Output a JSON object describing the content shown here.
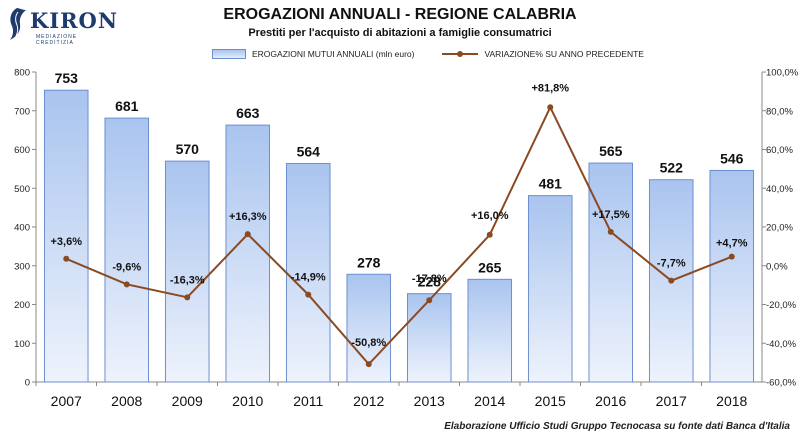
{
  "logo": {
    "name": "KIRON",
    "tagline": "MEDIAZIONE CREDITIZIA"
  },
  "chart_data": {
    "type": "bar",
    "title": "EROGAZIONI ANNUALI - REGIONE CALABRIA",
    "subtitle": "Prestiti per l'acquisto di abitazioni a famiglie consumatrici",
    "categories": [
      "2007",
      "2008",
      "2009",
      "2010",
      "2011",
      "2012",
      "2013",
      "2014",
      "2015",
      "2016",
      "2017",
      "2018"
    ],
    "series": [
      {
        "name": "EROGAZIONI MUTUI ANNUALI (mln euro)",
        "type": "bar",
        "axis": "left",
        "values": [
          753,
          681,
          570,
          663,
          564,
          278,
          228,
          265,
          481,
          565,
          522,
          546
        ]
      },
      {
        "name": "VARIAZIONE% SU ANNO PRECEDENTE",
        "type": "line",
        "axis": "right",
        "values": [
          3.6,
          -9.6,
          -16.3,
          16.3,
          -14.9,
          -50.8,
          -17.8,
          16.0,
          81.8,
          17.5,
          -7.7,
          4.7
        ],
        "labels": [
          "+3,6%",
          "-9,6%",
          "-16,3%",
          "+16,3%",
          "-14,9%",
          "-50,8%",
          "-17,8%",
          "+16,0%",
          "+81,8%",
          "+17,5%",
          "-7,7%",
          "+4,7%"
        ]
      }
    ],
    "ylim_left": [
      0,
      800
    ],
    "yticks_left": [
      "0",
      "100",
      "200",
      "300",
      "400",
      "500",
      "600",
      "700",
      "800"
    ],
    "ylim_right": [
      -60,
      100
    ],
    "yticks_right": [
      "-60,0%",
      "-40,0%",
      "-20,0%",
      "0,0%",
      "20,0%",
      "40,0%",
      "60,0%",
      "80,0%",
      "100,0%"
    ],
    "grid": false,
    "legend_position": "top",
    "colors": {
      "bar": "#b9cff3",
      "bar_border": "#6d8fcf",
      "line": "#8a4a22"
    }
  },
  "footer": "Elaborazione Ufficio Studi Gruppo Tecnocasa su fonte dati Banca d'Italia"
}
